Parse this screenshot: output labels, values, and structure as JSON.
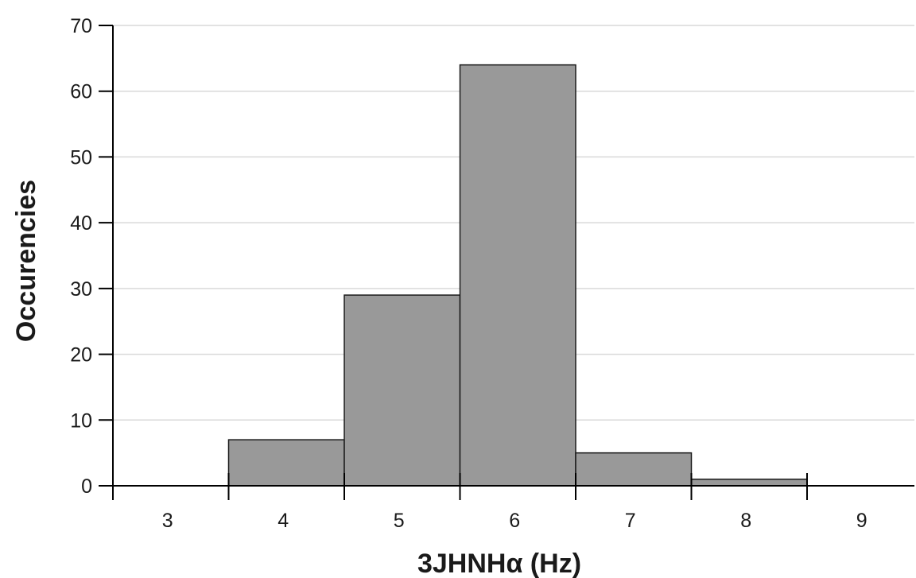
{
  "chart_data": {
    "type": "bar",
    "categories": [
      "3",
      "4",
      "5",
      "6",
      "7",
      "8",
      "9"
    ],
    "values": [
      0,
      7,
      29,
      64,
      5,
      1,
      0
    ],
    "xlabel": "3JHNHα  (Hz)",
    "ylabel": "Occurencies",
    "ylim": [
      0,
      70
    ],
    "yticks": [
      "0",
      "10",
      "20",
      "30",
      "40",
      "50",
      "60",
      "70"
    ],
    "grid": true
  }
}
